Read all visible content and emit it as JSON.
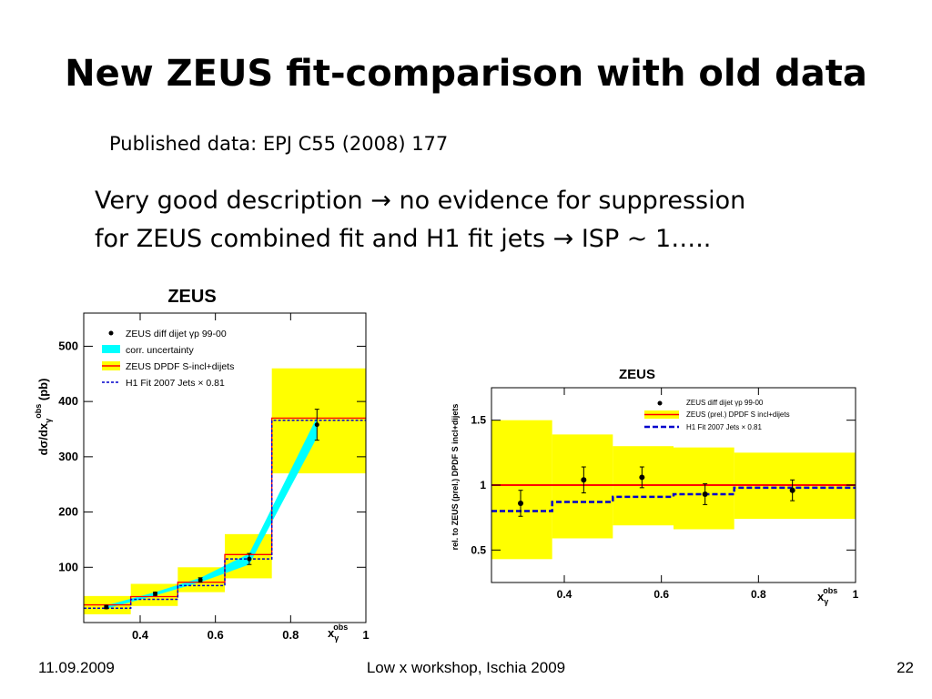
{
  "slide": {
    "title": "New ZEUS fit-comparison with old data",
    "subtitle": "Published data: EPJ C55 (2008) 177",
    "desc_line1": "Very good description → no evidence for suppression",
    "desc_line2": "for ZEUS combined fit and H1 fit jets → ISP ~ 1…..",
    "footer_date": "11.09.2009",
    "footer_center": "Low x workshop, Ischia 2009",
    "footer_page": "22"
  },
  "colors": {
    "band_yellow": "#ffff00",
    "band_cyan": "#00ffff",
    "zeus_fit": "#ff0000",
    "h1_fit": "#0000cc",
    "data_point": "#000000"
  },
  "chart_data": [
    {
      "type": "line",
      "title": "ZEUS",
      "xlabel": "xγobs",
      "ylabel": "dσ/dxγobs (pb)",
      "xlim": [
        0.25,
        1.0
      ],
      "ylim": [
        0,
        560
      ],
      "x_ticks": [
        "0.4",
        "0.6",
        "0.8",
        "1"
      ],
      "x_tick_values": [
        0.4,
        0.6,
        0.8,
        1.0
      ],
      "y_ticks": [
        "100",
        "200",
        "300",
        "400",
        "500"
      ],
      "y_tick_values": [
        100,
        200,
        300,
        400,
        500
      ],
      "legend_position": "top-left",
      "legend": [
        "ZEUS diff dijet γp 99-00",
        "corr. uncertainty",
        "ZEUS DPDF S-incl+dijets",
        "H1 Fit 2007 Jets × 0.81"
      ],
      "bin_edges": [
        0.25,
        0.375,
        0.5,
        0.625,
        0.75,
        1.0
      ],
      "data_points": [
        {
          "x": 0.31,
          "y": 28,
          "err": 3
        },
        {
          "x": 0.44,
          "y": 52,
          "err": 3
        },
        {
          "x": 0.56,
          "y": 77,
          "err": 4
        },
        {
          "x": 0.69,
          "y": 115,
          "err": 10
        },
        {
          "x": 0.87,
          "y": 358,
          "err": 28
        }
      ],
      "corr_uncertainty": [
        {
          "x": 0.31,
          "low": 25,
          "high": 31
        },
        {
          "x": 0.44,
          "low": 49,
          "high": 55
        },
        {
          "x": 0.56,
          "low": 73,
          "high": 81
        },
        {
          "x": 0.69,
          "low": 105,
          "high": 125
        },
        {
          "x": 0.87,
          "low": 335,
          "high": 372
        }
      ],
      "series": [
        {
          "name": "ZEUS DPDF S-incl+dijets",
          "values": [
            32,
            47,
            73,
            123,
            370
          ],
          "band_low": [
            15,
            30,
            55,
            80,
            270
          ],
          "band_high": [
            48,
            70,
            100,
            160,
            460
          ]
        },
        {
          "name": "H1 Fit 2007 Jets × 0.81",
          "values": [
            26,
            42,
            67,
            115,
            366
          ]
        }
      ]
    },
    {
      "type": "line",
      "title": "ZEUS",
      "xlabel": "xγobs",
      "ylabel": "rel. to ZEUS (prel.) DPDF S incl+dijets",
      "xlim": [
        0.25,
        1.0
      ],
      "ylim": [
        0.25,
        1.75
      ],
      "x_ticks": [
        "0.4",
        "0.6",
        "0.8",
        "1"
      ],
      "x_tick_values": [
        0.4,
        0.6,
        0.8,
        1.0
      ],
      "y_ticks": [
        "0.5",
        "1",
        "1.5"
      ],
      "y_tick_values": [
        0.5,
        1.0,
        1.5
      ],
      "legend_position": "top-right",
      "legend": [
        "ZEUS diff dijet γp 99-00",
        "ZEUS (prel.) DPDF S incl+dijets",
        "H1 Fit 2007 Jets × 0.81"
      ],
      "bin_edges": [
        0.25,
        0.375,
        0.5,
        0.625,
        0.75,
        1.0
      ],
      "data_points": [
        {
          "x": 0.31,
          "y": 0.86,
          "err": 0.1
        },
        {
          "x": 0.44,
          "y": 1.04,
          "err": 0.1
        },
        {
          "x": 0.56,
          "y": 1.06,
          "err": 0.08
        },
        {
          "x": 0.69,
          "y": 0.93,
          "err": 0.08
        },
        {
          "x": 0.87,
          "y": 0.96,
          "err": 0.08
        }
      ],
      "series": [
        {
          "name": "ZEUS (prel.) DPDF S incl+dijets",
          "values": [
            1,
            1,
            1,
            1,
            1
          ],
          "band_low": [
            0.43,
            0.59,
            0.69,
            0.66,
            0.74
          ],
          "band_high": [
            1.5,
            1.39,
            1.3,
            1.29,
            1.25
          ]
        },
        {
          "name": "H1 Fit 2007 Jets × 0.81",
          "values": [
            0.8,
            0.87,
            0.91,
            0.93,
            0.98
          ]
        }
      ]
    }
  ]
}
